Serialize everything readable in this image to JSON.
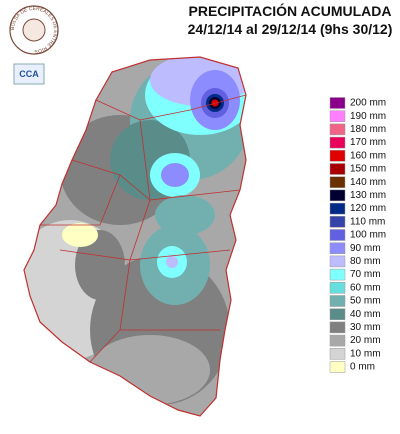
{
  "header": {
    "title": "PRECIPITACIÓN ACUMULADA",
    "subtitle": "24/12/14 al 29/12/14 (9hs 30/12)"
  },
  "logo": {
    "text": "BOLSA DE CEREALES DE ENTRE RIOS",
    "badge": "CCA"
  },
  "legend": [
    {
      "label": "200 mm",
      "color": "#8b008b"
    },
    {
      "label": "190 mm",
      "color": "#ff80ff"
    },
    {
      "label": "180 mm",
      "color": "#f06488"
    },
    {
      "label": "170 mm",
      "color": "#e8005a"
    },
    {
      "label": "160 mm",
      "color": "#e00000"
    },
    {
      "label": "150 mm",
      "color": "#a80000"
    },
    {
      "label": "140 mm",
      "color": "#6b3000"
    },
    {
      "label": "130 mm",
      "color": "#000030"
    },
    {
      "label": "120 mm",
      "color": "#002a88"
    },
    {
      "label": "110 mm",
      "color": "#3444a8"
    },
    {
      "label": "100 mm",
      "color": "#6060e0"
    },
    {
      "label": "90 mm",
      "color": "#8c8cff"
    },
    {
      "label": "80 mm",
      "color": "#bcbcff"
    },
    {
      "label": "70 mm",
      "color": "#80ffff"
    },
    {
      "label": "60 mm",
      "color": "#66dede"
    },
    {
      "label": "50 mm",
      "color": "#72b0b0"
    },
    {
      "label": "40 mm",
      "color": "#5a8c8a"
    },
    {
      "label": "30 mm",
      "color": "#808080"
    },
    {
      "label": "20 mm",
      "color": "#a8a8a8"
    },
    {
      "label": "10 mm",
      "color": "#d4d4d4"
    },
    {
      "label": "0 mm",
      "color": "#ffffc4"
    }
  ]
}
